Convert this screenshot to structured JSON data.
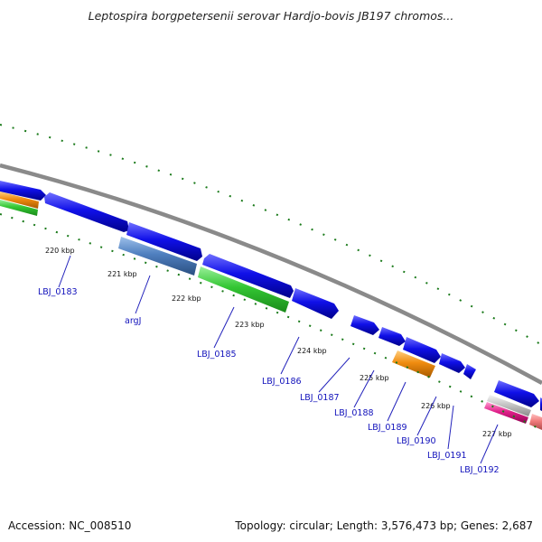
{
  "title": "Leptospira borgpetersenii serovar Hardjo-bovis JB197 chromos...",
  "footer": {
    "accession": "Accession: NC_008510",
    "summary": "Topology: circular; Length: 3,576,473 bp; Genes: 2,687"
  },
  "kbp_labels": [
    "220 kbp",
    "221 kbp",
    "222 kbp",
    "223 kbp",
    "224 kbp",
    "225 kbp",
    "226 kbp",
    "227 kbp"
  ],
  "gene_labels": [
    "LBJ_0183",
    "argJ",
    "LBJ_0185",
    "LBJ_0186",
    "LBJ_0187",
    "LBJ_0188",
    "LBJ_0189",
    "LBJ_0190",
    "LBJ_0191",
    "LBJ_0192"
  ],
  "colors": {
    "backbone": "#8a8a8a",
    "cds": "#1010e8",
    "gene_stripe": "#4f7fbf",
    "green": "#33c633",
    "orange": "#f08c10",
    "magenta": "#e0208a",
    "pink": "#f07c7c",
    "gray": "#c0c0c0",
    "dots": "#1a7a1a"
  }
}
